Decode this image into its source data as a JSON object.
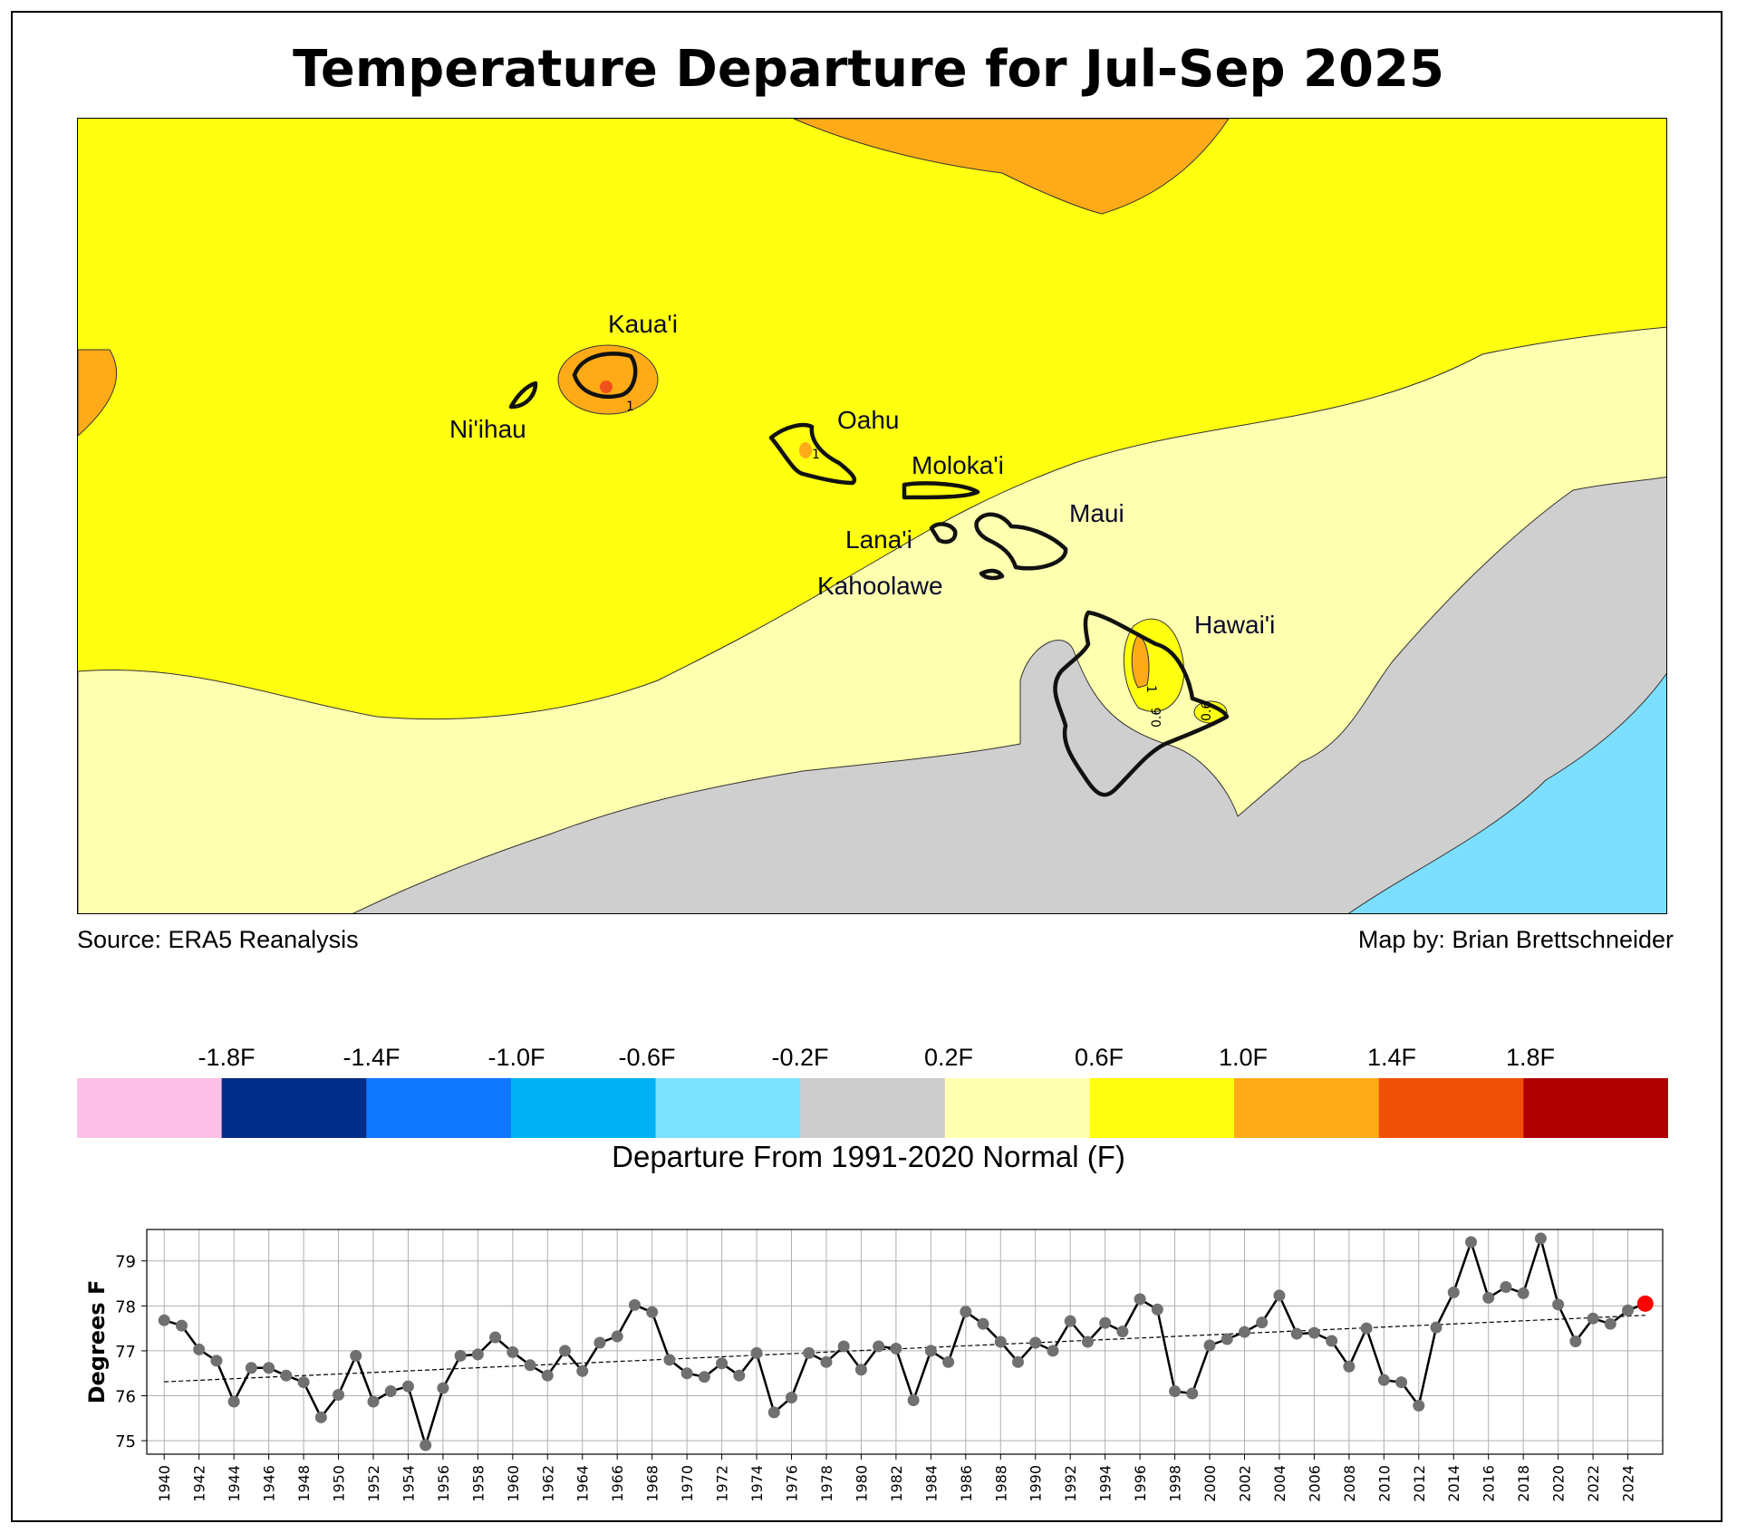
{
  "title": "Temperature Departure for Jul-Sep 2025",
  "map": {
    "source": "Source: ERA5 Reanalysis",
    "credit": "Map by: Brian Brettschneider",
    "places": [
      "Kaua'i",
      "Ni'ihau",
      "Oahu",
      "Moloka'i",
      "Maui",
      "Lana'i",
      "Kahoolawe",
      "Hawai'i"
    ],
    "contour_labels": [
      "1",
      "1",
      "1",
      "0.6",
      "0.6"
    ],
    "fill_colors": {
      "orange": "#ffab17",
      "yellow": "#ffff10",
      "light_yellow": "#ffffb0",
      "gray": "#cfcfcf",
      "light_blue": "#7ddfff",
      "red_orange": "#f0521a"
    }
  },
  "colorbar": {
    "label": "Departure From 1991-2020 Normal (F)",
    "tick_labels": [
      "-1.8F",
      "-1.4F",
      "-1.0F",
      "-0.6F",
      "-0.2F",
      "0.2F",
      "0.6F",
      "1.0F",
      "1.4F",
      "1.8F"
    ],
    "colors": [
      "#fdc0e6",
      "#002d87",
      "#0f77ff",
      "#00b2f5",
      "#7de3ff",
      "#cdcdcd",
      "#ffffb2",
      "#ffff10",
      "#ffab17",
      "#f05006",
      "#b10000"
    ]
  },
  "chart_data": {
    "type": "line",
    "title": "",
    "xlabel": "",
    "ylabel": "Degrees F",
    "xlim": [
      1939,
      2026
    ],
    "ylim": [
      74.7,
      79.7
    ],
    "yticks": [
      75,
      76,
      77,
      78,
      79
    ],
    "xticks": [
      1940,
      1942,
      1944,
      1946,
      1948,
      1950,
      1952,
      1954,
      1956,
      1958,
      1960,
      1962,
      1964,
      1966,
      1968,
      1970,
      1972,
      1974,
      1976,
      1978,
      1980,
      1982,
      1984,
      1986,
      1988,
      1990,
      1992,
      1994,
      1996,
      1998,
      2000,
      2002,
      2004,
      2006,
      2008,
      2010,
      2012,
      2014,
      2016,
      2018,
      2020,
      2022,
      2024
    ],
    "grid": true,
    "x_start": 1940,
    "values": [
      77.68,
      77.56,
      77.03,
      76.78,
      75.87,
      76.62,
      76.62,
      76.45,
      76.3,
      75.52,
      76.02,
      76.89,
      75.87,
      76.1,
      76.21,
      74.9,
      76.17,
      76.89,
      76.92,
      77.3,
      76.97,
      76.68,
      76.45,
      77.0,
      76.55,
      77.18,
      77.32,
      78.02,
      77.86,
      76.8,
      76.5,
      76.42,
      76.72,
      76.45,
      76.95,
      75.63,
      75.96,
      76.95,
      76.75,
      77.1,
      76.58,
      77.1,
      77.05,
      75.9,
      77.0,
      76.75,
      77.87,
      77.6,
      77.2,
      76.75,
      77.18,
      77.0,
      77.66,
      77.2,
      77.62,
      77.43,
      78.15,
      77.92,
      76.1,
      76.05,
      77.12,
      77.26,
      77.42,
      77.63,
      78.23,
      77.38,
      77.4,
      77.22,
      76.65,
      77.5,
      76.35,
      76.3,
      75.78,
      77.52,
      78.3,
      79.42,
      78.18,
      78.42,
      78.28,
      79.5,
      78.03,
      77.21,
      77.72,
      77.6,
      77.9
    ],
    "highlight": {
      "year": 2025,
      "value": 78.05,
      "color": "#ff0000"
    },
    "trend": {
      "start": [
        1940,
        76.31
      ],
      "end": [
        2025,
        77.79
      ]
    },
    "line_color": "#000000",
    "marker_color": "#707070"
  }
}
